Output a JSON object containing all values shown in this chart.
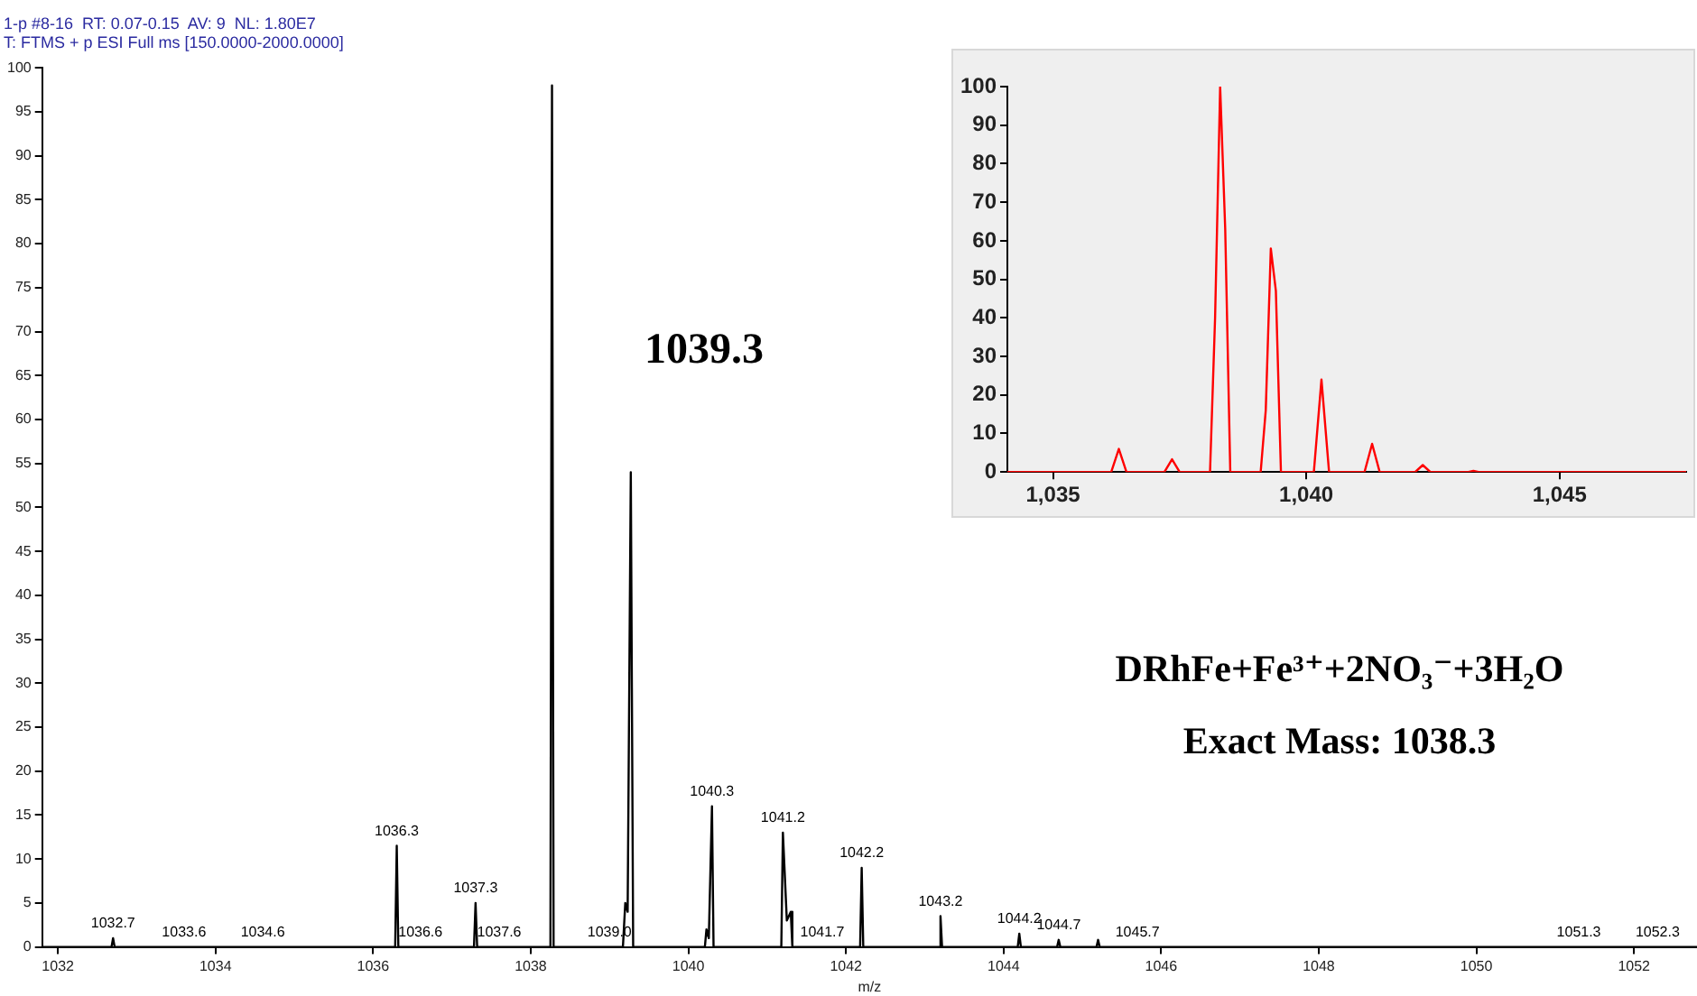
{
  "chart_data": [
    {
      "type": "line",
      "title": "1-p #8-16  RT: 0.07-0.15  AV: 9  NL: 1.80E7",
      "subtitle": "T: FTMS + p ESI Full ms [150.0000-2000.0000]",
      "xlabel": "m/z",
      "series": [
        {
          "color": "#000000",
          "x": [
            1031.8,
            1032.68,
            1032.7,
            1032.72,
            1036.28,
            1036.3,
            1036.32,
            1037.28,
            1037.3,
            1037.32,
            1038.25,
            1038.27,
            1038.29,
            1039.17,
            1039.2,
            1039.23,
            1039.27,
            1039.3,
            1040.21,
            1040.23,
            1040.26,
            1040.3,
            1040.32,
            1041.18,
            1041.2,
            1041.25,
            1041.3,
            1041.32,
            1042.18,
            1042.2,
            1042.22,
            1043.18,
            1043.2,
            1043.22,
            1044.18,
            1044.2,
            1044.22,
            1044.68,
            1044.7,
            1044.72,
            1045.18,
            1045.2,
            1045.22,
            1052.8
          ],
          "values": [
            0,
            0,
            1,
            0,
            0,
            11.5,
            0,
            0,
            5,
            0,
            0,
            98,
            0,
            0,
            5,
            4,
            54,
            0,
            0,
            2,
            1,
            16,
            0,
            0,
            13,
            3,
            4,
            0,
            0,
            9,
            0,
            0,
            3.5,
            0,
            0,
            1.5,
            0,
            0,
            0.8,
            0,
            0,
            0.8,
            0,
            0
          ]
        }
      ],
      "xlim": [
        1031.8,
        1052.8
      ],
      "ylim": [
        0,
        100
      ],
      "xticks": [
        1032,
        1034,
        1036,
        1038,
        1040,
        1042,
        1044,
        1046,
        1048,
        1050,
        1052
      ],
      "yticks": [
        0,
        5,
        10,
        15,
        20,
        25,
        30,
        35,
        40,
        45,
        50,
        55,
        60,
        65,
        70,
        75,
        80,
        85,
        90,
        95,
        100
      ],
      "grid": false,
      "legend": false,
      "marker": "none",
      "line_style": "solid",
      "annotations": [
        "1039.3",
        "DRhFe+Fe³⁺+2NO₃⁻+3H₂O",
        "Exact Mass: 1038.3",
        {
          "text": "1032.7",
          "x": 1032.7,
          "y": 1
        },
        {
          "text": "1033.6",
          "x": 1033.6,
          "y": 0
        },
        {
          "text": "1034.6",
          "x": 1034.6,
          "y": 0
        },
        {
          "text": "1036.3",
          "x": 1036.3,
          "y": 11.5
        },
        {
          "text": "1036.6",
          "x": 1036.6,
          "y": 0
        },
        {
          "text": "1037.3",
          "x": 1037.3,
          "y": 5
        },
        {
          "text": "1037.6",
          "x": 1037.6,
          "y": 0
        },
        {
          "text": "1039.0",
          "x": 1039.0,
          "y": 0
        },
        {
          "text": "1040.3",
          "x": 1040.3,
          "y": 16
        },
        {
          "text": "1041.2",
          "x": 1041.2,
          "y": 13
        },
        {
          "text": "1041.7",
          "x": 1041.7,
          "y": 0
        },
        {
          "text": "1042.2",
          "x": 1042.2,
          "y": 9
        },
        {
          "text": "1043.2",
          "x": 1043.2,
          "y": 3.5
        },
        {
          "text": "1044.2",
          "x": 1044.2,
          "y": 1.5
        },
        {
          "text": "1044.7",
          "x": 1044.7,
          "y": 0.8
        },
        {
          "text": "1045.7",
          "x": 1045.7,
          "y": 0
        },
        {
          "text": "1051.3",
          "x": 1051.3,
          "y": 0
        },
        {
          "text": "1052.3",
          "x": 1052.3,
          "y": 0
        }
      ]
    },
    {
      "type": "line",
      "series": [
        {
          "color": "#ff0000",
          "x": [
            1034.1,
            1036.15,
            1036.3,
            1036.45,
            1037.2,
            1037.35,
            1037.5,
            1038.1,
            1038.2,
            1038.3,
            1038.4,
            1038.5,
            1039.1,
            1039.2,
            1039.3,
            1039.4,
            1039.5,
            1040.15,
            1040.3,
            1040.45,
            1041.15,
            1041.3,
            1041.45,
            1042.15,
            1042.3,
            1042.45,
            1043.2,
            1043.3,
            1043.4,
            1047.5
          ],
          "values": [
            0,
            0,
            6,
            0,
            0,
            3.3,
            0,
            0,
            40,
            100,
            63,
            0,
            0,
            16,
            58,
            47,
            0,
            0,
            24,
            0,
            0,
            7.3,
            0,
            0,
            1.8,
            0,
            0,
            0.3,
            0,
            0
          ]
        }
      ],
      "xlim": [
        1034.1,
        1047.5
      ],
      "ylim": [
        0,
        100
      ],
      "xticks": [
        {
          "value": 1035,
          "label": "1,035"
        },
        {
          "value": 1040,
          "label": "1,040"
        },
        {
          "value": 1045,
          "label": "1,045"
        }
      ],
      "yticks": [
        0,
        10,
        20,
        30,
        40,
        50,
        60,
        70,
        80,
        90,
        100
      ],
      "grid": false,
      "legend": false,
      "marker": "none",
      "line_style": "solid"
    }
  ]
}
